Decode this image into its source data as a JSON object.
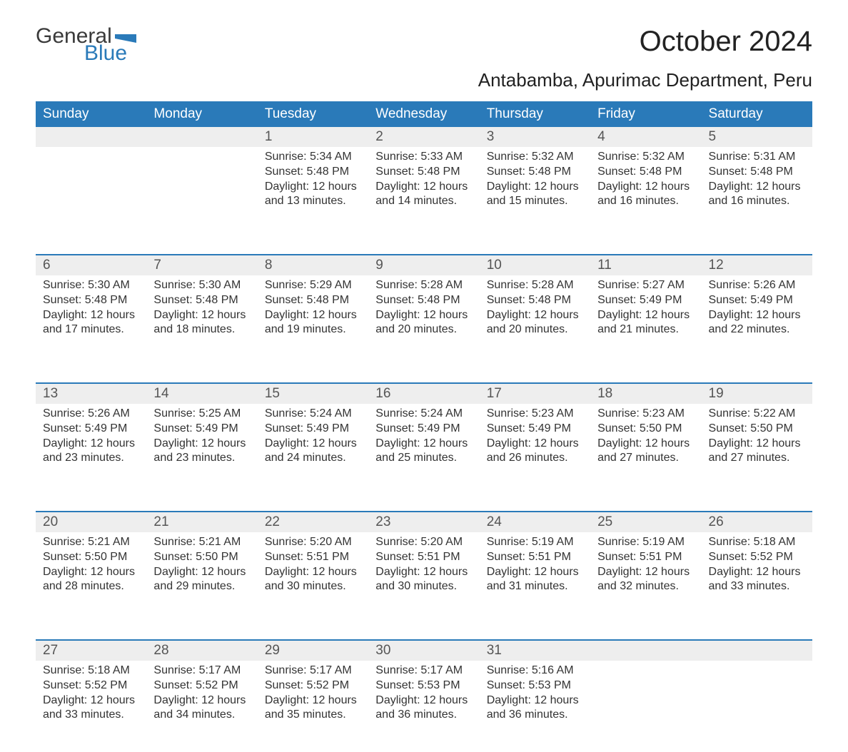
{
  "logo": {
    "general": "General",
    "blue": "Blue",
    "flag_color": "#2a7ab9"
  },
  "header": {
    "month_title": "October 2024",
    "location": "Antabamba, Apurimac Department, Peru"
  },
  "colors": {
    "header_bg": "#2a7ab9",
    "header_text": "#ffffff",
    "daynum_bg": "#eeeeee",
    "week_border": "#2a7ab9",
    "body_text": "#333333",
    "page_bg": "#ffffff"
  },
  "typography": {
    "month_title_fontsize": 40,
    "location_fontsize": 26,
    "dayhead_fontsize": 19,
    "daynum_fontsize": 19,
    "cell_body_fontsize": 16,
    "font_family": "Arial"
  },
  "calendar": {
    "type": "table",
    "day_headers": [
      "Sunday",
      "Monday",
      "Tuesday",
      "Wednesday",
      "Thursday",
      "Friday",
      "Saturday"
    ],
    "weeks": [
      [
        {
          "num": "",
          "lines": []
        },
        {
          "num": "",
          "lines": []
        },
        {
          "num": "1",
          "lines": [
            "Sunrise: 5:34 AM",
            "Sunset: 5:48 PM",
            "Daylight: 12 hours and 13 minutes."
          ]
        },
        {
          "num": "2",
          "lines": [
            "Sunrise: 5:33 AM",
            "Sunset: 5:48 PM",
            "Daylight: 12 hours and 14 minutes."
          ]
        },
        {
          "num": "3",
          "lines": [
            "Sunrise: 5:32 AM",
            "Sunset: 5:48 PM",
            "Daylight: 12 hours and 15 minutes."
          ]
        },
        {
          "num": "4",
          "lines": [
            "Sunrise: 5:32 AM",
            "Sunset: 5:48 PM",
            "Daylight: 12 hours and 16 minutes."
          ]
        },
        {
          "num": "5",
          "lines": [
            "Sunrise: 5:31 AM",
            "Sunset: 5:48 PM",
            "Daylight: 12 hours and 16 minutes."
          ]
        }
      ],
      [
        {
          "num": "6",
          "lines": [
            "Sunrise: 5:30 AM",
            "Sunset: 5:48 PM",
            "Daylight: 12 hours and 17 minutes."
          ]
        },
        {
          "num": "7",
          "lines": [
            "Sunrise: 5:30 AM",
            "Sunset: 5:48 PM",
            "Daylight: 12 hours and 18 minutes."
          ]
        },
        {
          "num": "8",
          "lines": [
            "Sunrise: 5:29 AM",
            "Sunset: 5:48 PM",
            "Daylight: 12 hours and 19 minutes."
          ]
        },
        {
          "num": "9",
          "lines": [
            "Sunrise: 5:28 AM",
            "Sunset: 5:48 PM",
            "Daylight: 12 hours and 20 minutes."
          ]
        },
        {
          "num": "10",
          "lines": [
            "Sunrise: 5:28 AM",
            "Sunset: 5:48 PM",
            "Daylight: 12 hours and 20 minutes."
          ]
        },
        {
          "num": "11",
          "lines": [
            "Sunrise: 5:27 AM",
            "Sunset: 5:49 PM",
            "Daylight: 12 hours and 21 minutes."
          ]
        },
        {
          "num": "12",
          "lines": [
            "Sunrise: 5:26 AM",
            "Sunset: 5:49 PM",
            "Daylight: 12 hours and 22 minutes."
          ]
        }
      ],
      [
        {
          "num": "13",
          "lines": [
            "Sunrise: 5:26 AM",
            "Sunset: 5:49 PM",
            "Daylight: 12 hours and 23 minutes."
          ]
        },
        {
          "num": "14",
          "lines": [
            "Sunrise: 5:25 AM",
            "Sunset: 5:49 PM",
            "Daylight: 12 hours and 23 minutes."
          ]
        },
        {
          "num": "15",
          "lines": [
            "Sunrise: 5:24 AM",
            "Sunset: 5:49 PM",
            "Daylight: 12 hours and 24 minutes."
          ]
        },
        {
          "num": "16",
          "lines": [
            "Sunrise: 5:24 AM",
            "Sunset: 5:49 PM",
            "Daylight: 12 hours and 25 minutes."
          ]
        },
        {
          "num": "17",
          "lines": [
            "Sunrise: 5:23 AM",
            "Sunset: 5:49 PM",
            "Daylight: 12 hours and 26 minutes."
          ]
        },
        {
          "num": "18",
          "lines": [
            "Sunrise: 5:23 AM",
            "Sunset: 5:50 PM",
            "Daylight: 12 hours and 27 minutes."
          ]
        },
        {
          "num": "19",
          "lines": [
            "Sunrise: 5:22 AM",
            "Sunset: 5:50 PM",
            "Daylight: 12 hours and 27 minutes."
          ]
        }
      ],
      [
        {
          "num": "20",
          "lines": [
            "Sunrise: 5:21 AM",
            "Sunset: 5:50 PM",
            "Daylight: 12 hours and 28 minutes."
          ]
        },
        {
          "num": "21",
          "lines": [
            "Sunrise: 5:21 AM",
            "Sunset: 5:50 PM",
            "Daylight: 12 hours and 29 minutes."
          ]
        },
        {
          "num": "22",
          "lines": [
            "Sunrise: 5:20 AM",
            "Sunset: 5:51 PM",
            "Daylight: 12 hours and 30 minutes."
          ]
        },
        {
          "num": "23",
          "lines": [
            "Sunrise: 5:20 AM",
            "Sunset: 5:51 PM",
            "Daylight: 12 hours and 30 minutes."
          ]
        },
        {
          "num": "24",
          "lines": [
            "Sunrise: 5:19 AM",
            "Sunset: 5:51 PM",
            "Daylight: 12 hours and 31 minutes."
          ]
        },
        {
          "num": "25",
          "lines": [
            "Sunrise: 5:19 AM",
            "Sunset: 5:51 PM",
            "Daylight: 12 hours and 32 minutes."
          ]
        },
        {
          "num": "26",
          "lines": [
            "Sunrise: 5:18 AM",
            "Sunset: 5:52 PM",
            "Daylight: 12 hours and 33 minutes."
          ]
        }
      ],
      [
        {
          "num": "27",
          "lines": [
            "Sunrise: 5:18 AM",
            "Sunset: 5:52 PM",
            "Daylight: 12 hours and 33 minutes."
          ]
        },
        {
          "num": "28",
          "lines": [
            "Sunrise: 5:17 AM",
            "Sunset: 5:52 PM",
            "Daylight: 12 hours and 34 minutes."
          ]
        },
        {
          "num": "29",
          "lines": [
            "Sunrise: 5:17 AM",
            "Sunset: 5:52 PM",
            "Daylight: 12 hours and 35 minutes."
          ]
        },
        {
          "num": "30",
          "lines": [
            "Sunrise: 5:17 AM",
            "Sunset: 5:53 PM",
            "Daylight: 12 hours and 36 minutes."
          ]
        },
        {
          "num": "31",
          "lines": [
            "Sunrise: 5:16 AM",
            "Sunset: 5:53 PM",
            "Daylight: 12 hours and 36 minutes."
          ]
        },
        {
          "num": "",
          "lines": []
        },
        {
          "num": "",
          "lines": []
        }
      ]
    ]
  }
}
